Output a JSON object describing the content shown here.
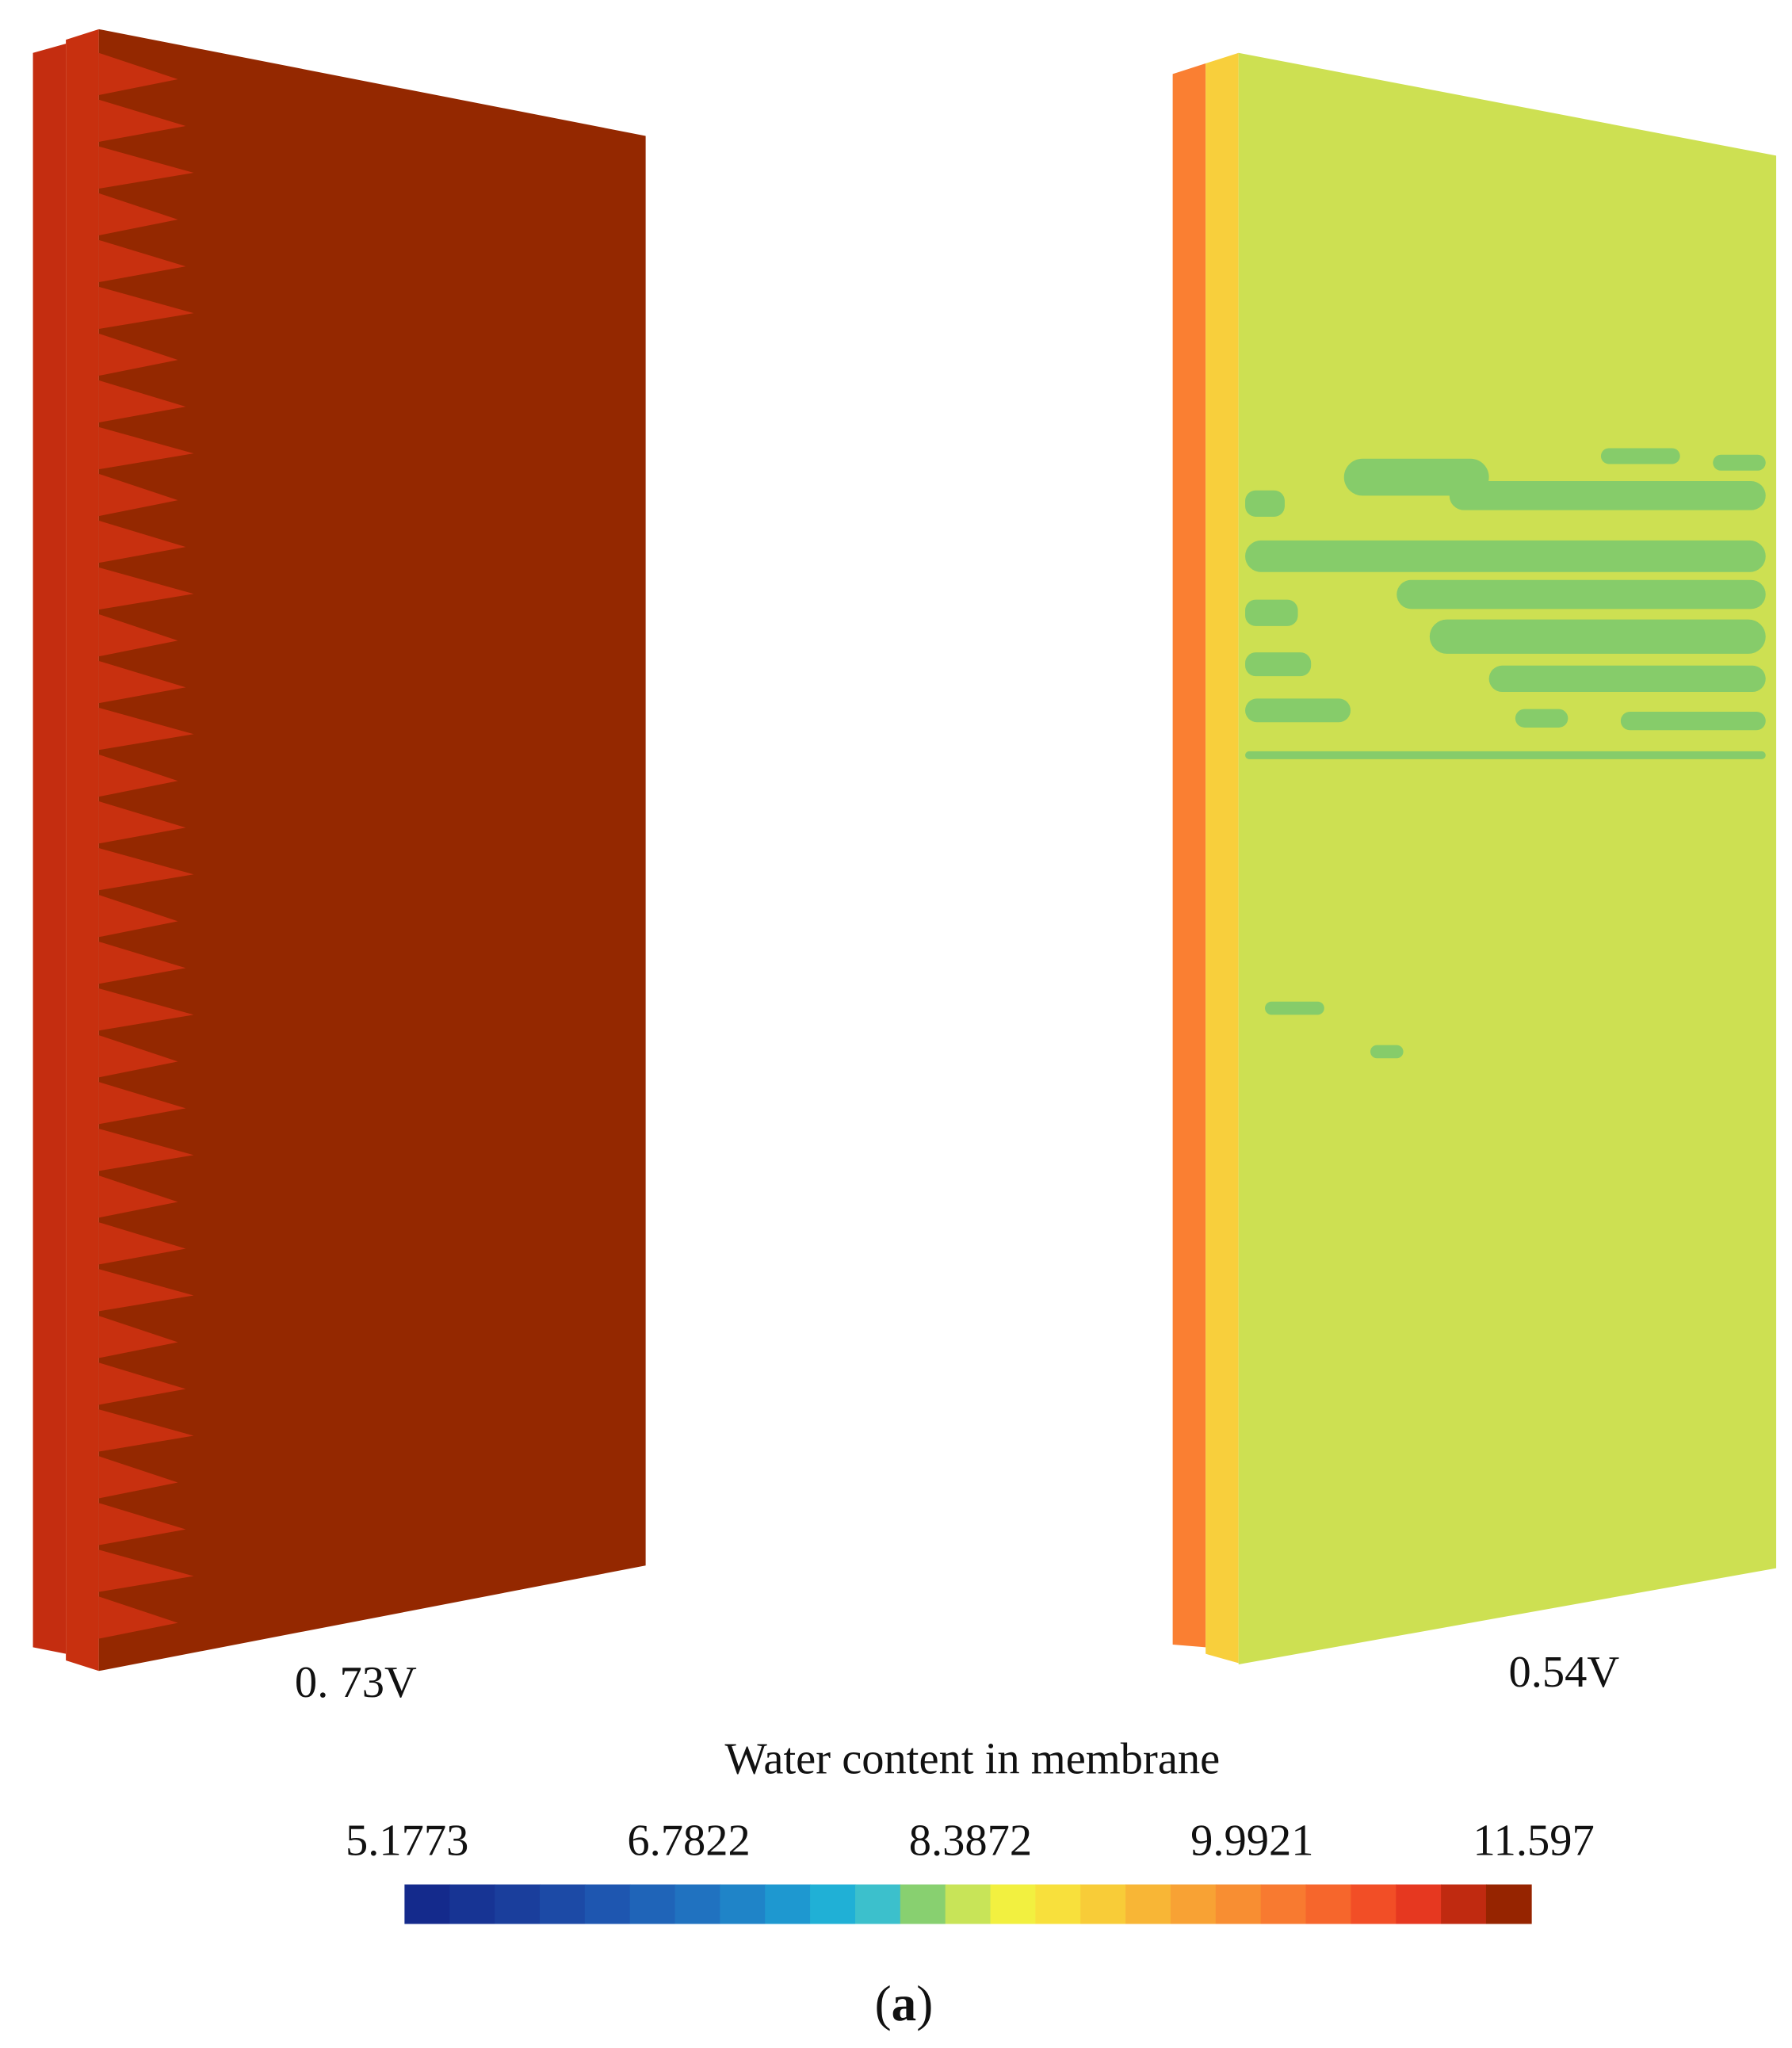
{
  "panels": [
    {
      "label": "0. 73V"
    },
    {
      "label": "0.54V"
    }
  ],
  "colorbar": {
    "title": "Water content in membrane",
    "ticks": [
      "5.1773",
      "6.7822",
      "8.3872",
      "9.9921",
      "11.597"
    ]
  },
  "caption": {
    "open": "(",
    "letter": "a",
    "close": ")"
  }
}
